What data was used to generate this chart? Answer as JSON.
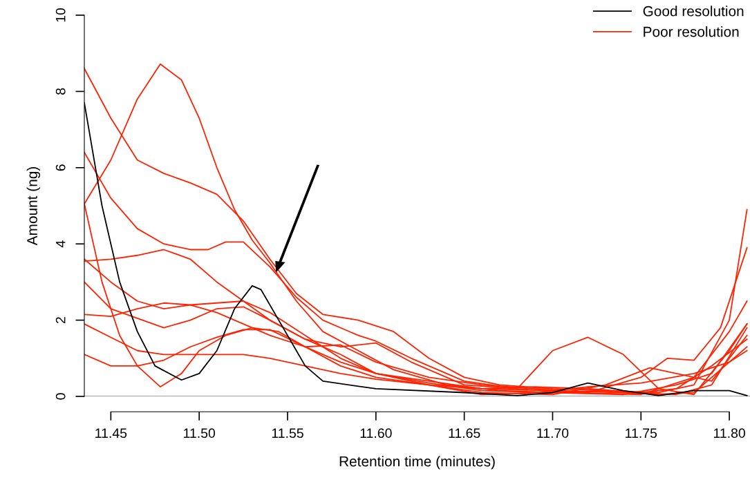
{
  "chart_data": {
    "type": "line",
    "xlabel": "Retention time (minutes)",
    "ylabel": "Amount (ng)",
    "xlim": [
      11.435,
      11.8117
    ],
    "ylim": [
      0,
      10
    ],
    "xticks": [
      {
        "value": 11.45,
        "label": "11.45"
      },
      {
        "value": 11.5,
        "label": "11.50"
      },
      {
        "value": 11.55,
        "label": "11.55"
      },
      {
        "value": 11.6,
        "label": "11.60"
      },
      {
        "value": 11.65,
        "label": "11.65"
      },
      {
        "value": 11.7,
        "label": "11.70"
      },
      {
        "value": 11.75,
        "label": "11.75"
      },
      {
        "value": 11.8,
        "label": "11.80"
      }
    ],
    "yticks": [
      0,
      2,
      4,
      6,
      8,
      10
    ],
    "grid": false,
    "legend": "top right",
    "marker": "none",
    "line_style": "solid",
    "ref_lines": [
      {
        "axis": "y",
        "value": 0,
        "color": "#808080"
      }
    ],
    "series": [
      {
        "name": "Good resolution",
        "color": "#000000",
        "x": [
          11.435,
          11.445,
          11.455,
          11.465,
          11.475,
          11.49,
          11.5,
          11.51,
          11.52,
          11.53,
          11.535,
          11.545,
          11.56,
          11.57,
          11.6,
          11.65,
          11.68,
          11.7,
          11.72,
          11.74,
          11.76,
          11.78,
          11.8,
          11.81
        ],
        "values": [
          7.7,
          5.0,
          3.0,
          1.7,
          0.8,
          0.43,
          0.6,
          1.2,
          2.3,
          2.9,
          2.8,
          2.0,
          0.8,
          0.4,
          0.2,
          0.1,
          0.02,
          0.1,
          0.35,
          0.15,
          0.02,
          0.15,
          0.15,
          0.02
        ]
      },
      {
        "name": "Poor resolution",
        "color": "#ff2200",
        "x": [
          11.435,
          11.45,
          11.465,
          11.48,
          11.495,
          11.51,
          11.525,
          11.54,
          11.555,
          11.57,
          11.59,
          11.61,
          11.63,
          11.65,
          11.67,
          11.7,
          11.73,
          11.76,
          11.78,
          11.8,
          11.81
        ],
        "values": [
          8.6,
          7.3,
          6.2,
          5.85,
          5.6,
          5.3,
          4.6,
          3.6,
          2.7,
          2.15,
          2.0,
          1.7,
          1.0,
          0.5,
          0.3,
          0.2,
          0.15,
          0.1,
          0.3,
          2.0,
          4.9
        ]
      },
      {
        "color": "#ff2200",
        "x": [
          11.435,
          11.45,
          11.465,
          11.478,
          11.49,
          11.5,
          11.51,
          11.52,
          11.53,
          11.54,
          11.555,
          11.57,
          11.59,
          11.61,
          11.64,
          11.67,
          11.7,
          11.74,
          11.77,
          11.79,
          11.81
        ],
        "values": [
          5.05,
          6.2,
          7.8,
          8.72,
          8.3,
          7.3,
          6.0,
          4.9,
          4.1,
          3.5,
          2.5,
          1.7,
          1.2,
          0.7,
          0.3,
          0.15,
          0.1,
          0.05,
          0.3,
          0.6,
          1.9
        ]
      },
      {
        "color": "#ff2200",
        "x": [
          11.435,
          11.45,
          11.465,
          11.48,
          11.495,
          11.505,
          11.515,
          11.525,
          11.54,
          11.555,
          11.57,
          11.59,
          11.6,
          11.62,
          11.65,
          11.68,
          11.71,
          11.75,
          11.78,
          11.8,
          11.81
        ],
        "values": [
          6.4,
          5.2,
          4.4,
          4.0,
          3.85,
          3.85,
          4.05,
          4.05,
          3.4,
          2.6,
          2.0,
          1.6,
          1.45,
          1.0,
          0.4,
          0.2,
          0.1,
          0.05,
          0.5,
          1.7,
          2.5
        ]
      },
      {
        "color": "#ff2200",
        "x": [
          11.435,
          11.45,
          11.465,
          11.48,
          11.495,
          11.51,
          11.525,
          11.54,
          11.56,
          11.58,
          11.6,
          11.62,
          11.65,
          11.68,
          11.7,
          11.72,
          11.74,
          11.76,
          11.78,
          11.8,
          11.81
        ],
        "values": [
          3.55,
          3.6,
          3.7,
          3.85,
          3.6,
          3.0,
          2.5,
          2.0,
          1.5,
          1.3,
          1.4,
          0.9,
          0.3,
          0.2,
          1.2,
          1.55,
          1.1,
          0.2,
          0.05,
          1.2,
          1.9
        ]
      },
      {
        "color": "#ff2200",
        "x": [
          11.435,
          11.445,
          11.455,
          11.465,
          11.478,
          11.49,
          11.5,
          11.515,
          11.53,
          11.545,
          11.56,
          11.58,
          11.6,
          11.63,
          11.66,
          11.7,
          11.73,
          11.755,
          11.77,
          11.79,
          11.81
        ],
        "values": [
          5.05,
          3.0,
          1.6,
          0.8,
          0.25,
          0.6,
          1.2,
          1.6,
          1.8,
          1.7,
          1.3,
          0.9,
          0.6,
          0.3,
          0.1,
          0.05,
          0.3,
          0.75,
          0.6,
          0.4,
          1.6
        ]
      },
      {
        "color": "#ff2200",
        "x": [
          11.435,
          11.45,
          11.465,
          11.48,
          11.495,
          11.51,
          11.525,
          11.54,
          11.56,
          11.58,
          11.6,
          11.63,
          11.66,
          11.69,
          11.72,
          11.75,
          11.77,
          11.79,
          11.81
        ],
        "values": [
          3.6,
          3.0,
          2.5,
          2.3,
          2.4,
          2.45,
          2.5,
          2.2,
          1.6,
          1.0,
          0.6,
          0.4,
          0.2,
          0.25,
          0.2,
          0.1,
          0.2,
          0.8,
          1.5
        ]
      },
      {
        "color": "#ff2200",
        "x": [
          11.435,
          11.45,
          11.465,
          11.48,
          11.495,
          11.51,
          11.525,
          11.54,
          11.56,
          11.58,
          11.6,
          11.63,
          11.66,
          11.7,
          11.73,
          11.76,
          11.78,
          11.8,
          11.81
        ],
        "values": [
          3.0,
          2.3,
          2.05,
          1.8,
          2.0,
          2.3,
          2.35,
          2.0,
          1.5,
          1.1,
          0.6,
          0.35,
          0.15,
          0.1,
          0.15,
          0.05,
          0.1,
          0.9,
          1.3
        ]
      },
      {
        "color": "#ff2200",
        "x": [
          11.435,
          11.45,
          11.465,
          11.48,
          11.495,
          11.51,
          11.525,
          11.54,
          11.56,
          11.58,
          11.6,
          11.63,
          11.66,
          11.69,
          11.72,
          11.75,
          11.765,
          11.78,
          11.795,
          11.81
        ],
        "values": [
          2.15,
          2.1,
          2.3,
          2.45,
          2.4,
          2.2,
          1.9,
          1.6,
          1.3,
          1.35,
          0.9,
          0.5,
          0.3,
          0.2,
          0.1,
          0.5,
          1.0,
          0.95,
          1.8,
          3.9
        ]
      },
      {
        "color": "#ff2200",
        "x": [
          11.435,
          11.45,
          11.465,
          11.48,
          11.495,
          11.51,
          11.525,
          11.54,
          11.56,
          11.58,
          11.6,
          11.63,
          11.66,
          11.7,
          11.74,
          11.77,
          11.79,
          11.81
        ],
        "values": [
          1.9,
          1.55,
          1.2,
          1.1,
          1.1,
          1.1,
          1.1,
          1.0,
          0.8,
          0.6,
          0.45,
          0.3,
          0.2,
          0.15,
          0.1,
          0.05,
          0.3,
          1.8
        ]
      },
      {
        "color": "#ff2200",
        "x": [
          11.435,
          11.45,
          11.465,
          11.48,
          11.495,
          11.51,
          11.525,
          11.54,
          11.56,
          11.58,
          11.6,
          11.63,
          11.66,
          11.69,
          11.72,
          11.75,
          11.78,
          11.8,
          11.81
        ],
        "values": [
          1.1,
          0.8,
          0.8,
          0.95,
          1.3,
          1.55,
          1.75,
          1.75,
          1.3,
          0.8,
          0.5,
          0.3,
          0.05,
          0.1,
          0.25,
          0.35,
          0.6,
          0.9,
          1.2
        ]
      }
    ]
  }
}
